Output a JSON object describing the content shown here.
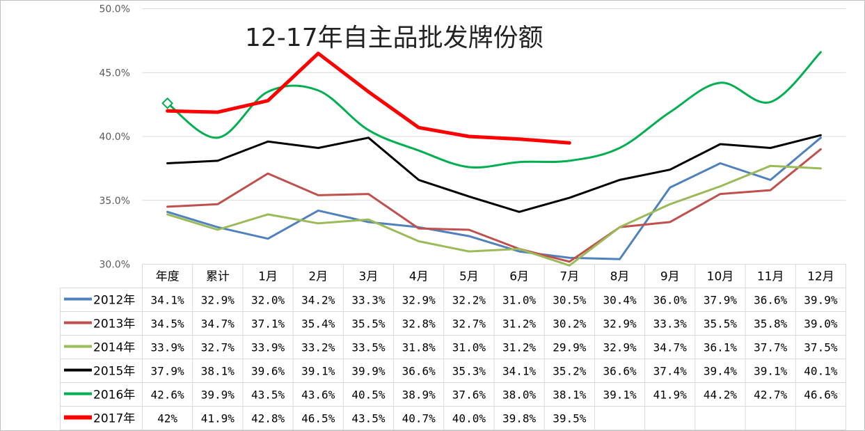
{
  "title": "12-17年自主品批发牌份额",
  "chart_data": {
    "type": "line",
    "title": "12-17年自主品批发牌份额",
    "xlabel": "",
    "ylabel": "",
    "ylim": [
      30,
      50
    ],
    "yticks": [
      "30.0%",
      "35.0%",
      "40.0%",
      "45.0%",
      "50.0%"
    ],
    "grid": true,
    "legend": "data-table",
    "categories": [
      "年度",
      "累计",
      "1月",
      "2月",
      "3月",
      "4月",
      "5月",
      "6月",
      "7月",
      "8月",
      "9月",
      "10月",
      "11月",
      "12月"
    ],
    "series": [
      {
        "name": "2012年",
        "color": "#4f81bd",
        "width": 3,
        "values": [
          34.1,
          32.9,
          32.0,
          34.2,
          33.3,
          32.9,
          32.2,
          31.0,
          30.5,
          30.4,
          36.0,
          37.9,
          36.6,
          39.9
        ],
        "labels": [
          "34.1%",
          "32.9%",
          "32.0%",
          "34.2%",
          "33.3%",
          "32.9%",
          "32.2%",
          "31.0%",
          "30.5%",
          "30.4%",
          "36.0%",
          "37.9%",
          "36.6%",
          "39.9%"
        ]
      },
      {
        "name": "2013年",
        "color": "#c0504d",
        "width": 3,
        "values": [
          34.5,
          34.7,
          37.1,
          35.4,
          35.5,
          32.8,
          32.7,
          31.2,
          30.2,
          32.9,
          33.3,
          35.5,
          35.8,
          39.0
        ],
        "labels": [
          "34.5%",
          "34.7%",
          "37.1%",
          "35.4%",
          "35.5%",
          "32.8%",
          "32.7%",
          "31.2%",
          "30.2%",
          "32.9%",
          "33.3%",
          "35.5%",
          "35.8%",
          "39.0%"
        ]
      },
      {
        "name": "2014年",
        "color": "#9bbb59",
        "width": 3,
        "values": [
          33.9,
          32.7,
          33.9,
          33.2,
          33.5,
          31.8,
          31.0,
          31.2,
          29.9,
          32.9,
          34.7,
          36.1,
          37.7,
          37.5
        ],
        "labels": [
          "33.9%",
          "32.7%",
          "33.9%",
          "33.2%",
          "33.5%",
          "31.8%",
          "31.0%",
          "31.2%",
          "29.9%",
          "32.9%",
          "34.7%",
          "36.1%",
          "37.7%",
          "37.5%"
        ]
      },
      {
        "name": "2015年",
        "color": "#000000",
        "width": 3,
        "values": [
          37.9,
          38.1,
          39.6,
          39.1,
          39.9,
          36.6,
          35.3,
          34.1,
          35.2,
          36.6,
          37.4,
          39.4,
          39.1,
          40.1
        ],
        "labels": [
          "37.9%",
          "38.1%",
          "39.6%",
          "39.1%",
          "39.9%",
          "36.6%",
          "35.3%",
          "34.1%",
          "35.2%",
          "36.6%",
          "37.4%",
          "39.4%",
          "39.1%",
          "40.1%"
        ]
      },
      {
        "name": "2016年",
        "color": "#00b050",
        "width": 3,
        "first_marker": "diamond",
        "values": [
          42.6,
          39.9,
          43.5,
          43.6,
          40.5,
          38.9,
          37.6,
          38.0,
          38.1,
          39.1,
          41.9,
          44.2,
          42.7,
          46.6
        ],
        "labels": [
          "42.6%",
          "39.9%",
          "43.5%",
          "43.6%",
          "40.5%",
          "38.9%",
          "37.6%",
          "38.0%",
          "38.1%",
          "39.1%",
          "41.9%",
          "44.2%",
          "42.7%",
          "46.6%"
        ]
      },
      {
        "name": "2017年",
        "color": "#ff0000",
        "width": 5,
        "values": [
          42.0,
          41.9,
          42.8,
          46.5,
          43.5,
          40.7,
          40.0,
          39.8,
          39.5,
          null,
          null,
          null,
          null,
          null
        ],
        "labels": [
          "42%",
          "41.9%",
          "42.8%",
          "46.5%",
          "43.5%",
          "40.7%",
          "40.0%",
          "39.8%",
          "39.5%",
          "",
          "",
          "",
          "",
          ""
        ]
      }
    ]
  }
}
